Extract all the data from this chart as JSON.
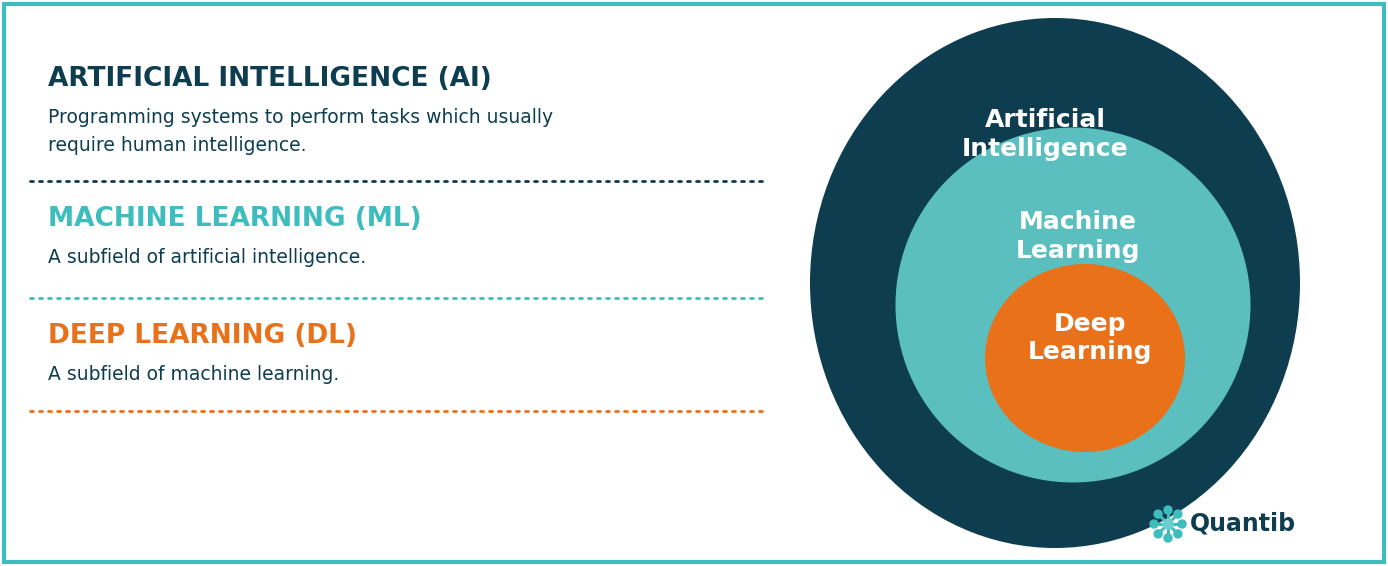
{
  "bg_color": "#ffffff",
  "border_color": "#3dbdbd",
  "ai_title": "ARTIFICIAL INTELLIGENCE (AI)",
  "ai_title_color": "#0d3d4f",
  "ai_desc_line1": "Programming systems to perform tasks which usually",
  "ai_desc_line2": "require human intelligence.",
  "ai_desc_color": "#0d3d4f",
  "ml_title": "MACHINE LEARNING (ML)",
  "ml_title_color": "#3dbdbd",
  "ml_desc": "A subfield of artificial intelligence.",
  "ml_desc_color": "#0d3d4f",
  "dl_title": "DEEP LEARNING (DL)",
  "dl_title_color": "#e8711a",
  "dl_desc": "A subfield of machine learning.",
  "dl_desc_color": "#0d3d4f",
  "sep1_color": "#0d3d4f",
  "sep2_color": "#3dbdbd",
  "sep3_color": "#e8711a",
  "ai_circle_color": "#0d3d4f",
  "ml_circle_color": "#5bbfbf",
  "dl_circle_color": "#e8711a",
  "circle_text_color": "#ffffff",
  "quantib_text_color": "#0d3d4f",
  "quantib_icon_blue": "#3dbdbd",
  "quantib_icon_green": "#6ecece",
  "fig_width": 13.88,
  "fig_height": 5.66,
  "dpi": 100
}
